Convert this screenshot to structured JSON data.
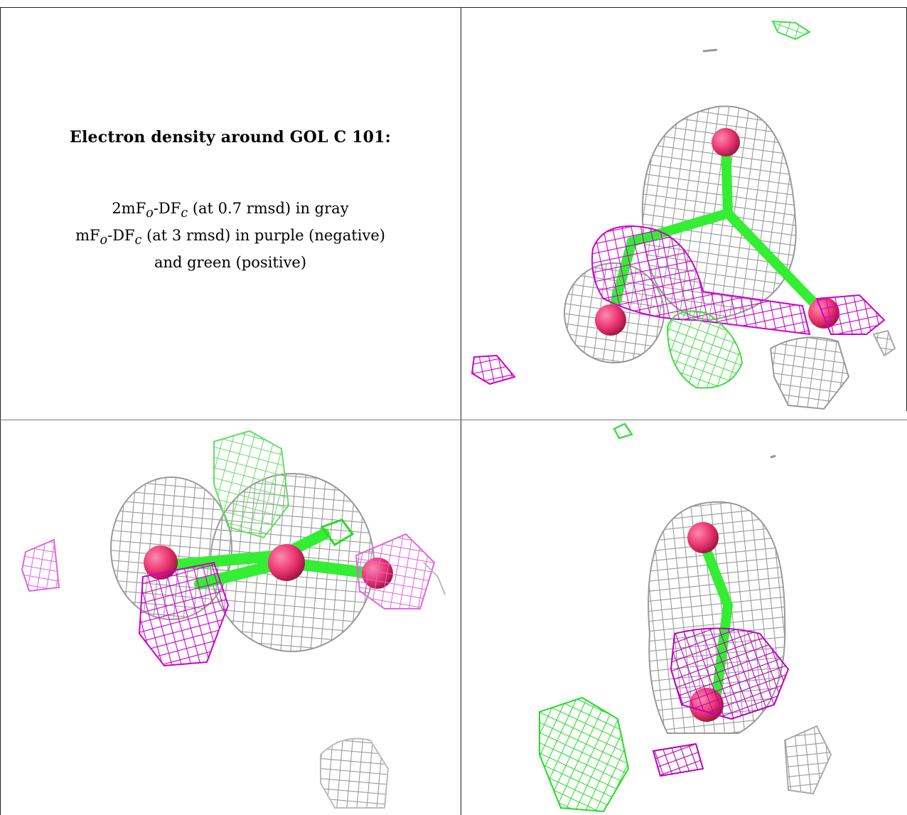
{
  "title": "Electron density around GOL C 101:",
  "legend": {
    "line1": {
      "pre": "2mF",
      "sub1": "o",
      "mid": "-DF",
      "sub2": "c",
      "post": " (at 0.7 rmsd) in gray"
    },
    "line2": {
      "pre": "mF",
      "sub1": "o",
      "mid": "-DF",
      "sub2": "c",
      "post": " (at 3 rmsd) in purple (negative)"
    },
    "line3": "and green (positive)"
  },
  "colors": {
    "gray_mesh": "#9a9a9a",
    "purple_mesh": "#cc00cc",
    "green_mesh": "#33dd33",
    "atom": "#e8326e",
    "bond": "#33ee33"
  }
}
